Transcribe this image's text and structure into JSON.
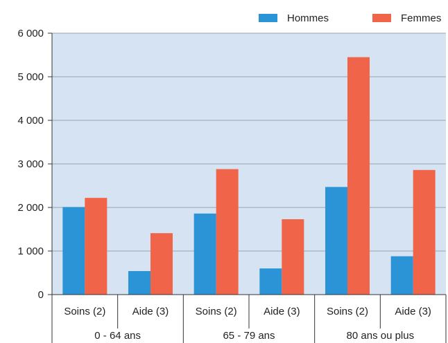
{
  "colors": {
    "hommes": "#2a94d6",
    "femmes": "#f0654a",
    "plot_bg": "#d5e3f3",
    "grid": "#9aa3ad",
    "axis": "#333333"
  },
  "chart_data": {
    "type": "bar",
    "title": "",
    "ylim": [
      0,
      6000
    ],
    "yticks": [
      0,
      1000,
      2000,
      3000,
      4000,
      5000,
      6000
    ],
    "ytick_labels": [
      "0",
      "1 000",
      "2 000",
      "3 000",
      "4 000",
      "5 000",
      "6 000"
    ],
    "grid": true,
    "legend_position": "top-right",
    "categories": [
      "Soins (2)",
      "Aide (3)",
      "Soins (2)",
      "Aide (3)",
      "Soins (2)",
      "Aide (3)"
    ],
    "groups": [
      "0 - 64 ans",
      "65 - 79 ans",
      "80 ans ou plus"
    ],
    "series": [
      {
        "name": "Hommes",
        "color": "#2a94d6",
        "values": [
          2010,
          540,
          1860,
          600,
          2470,
          880
        ]
      },
      {
        "name": "Femmes",
        "color": "#f0654a",
        "values": [
          2220,
          1410,
          2880,
          1730,
          5450,
          2860
        ]
      }
    ]
  }
}
